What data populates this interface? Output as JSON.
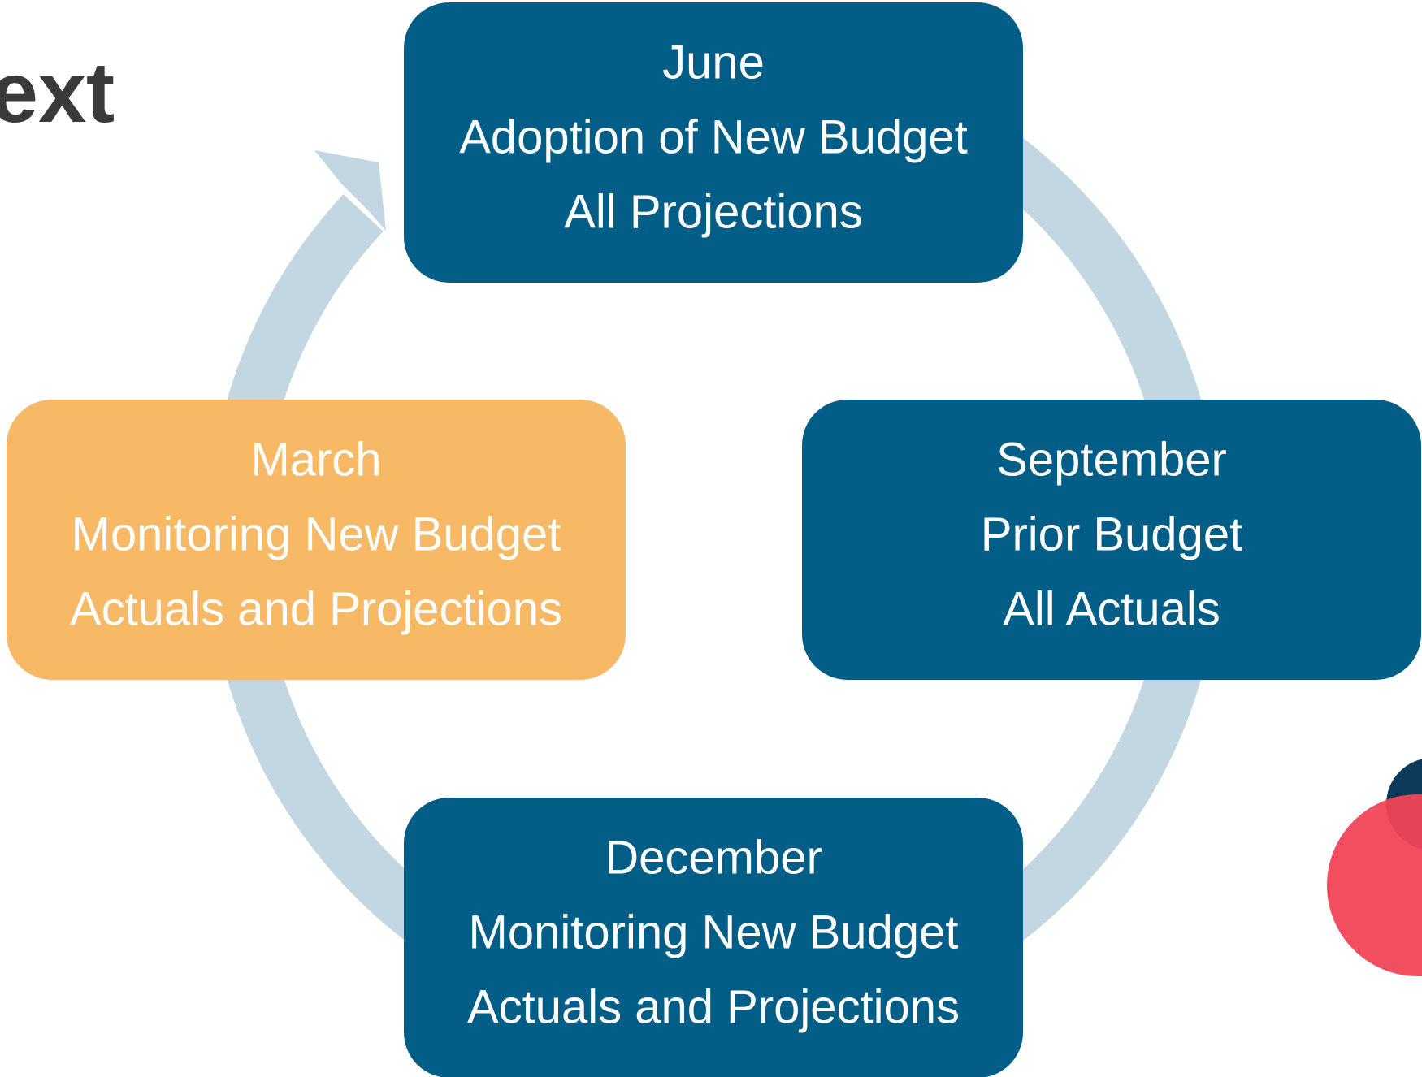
{
  "header": {
    "title": "ext"
  },
  "nodes": [
    {
      "lines": [
        "June",
        "Adoption of New Budget",
        "All Projections"
      ]
    },
    {
      "lines": [
        "September",
        "Prior Budget",
        "All Actuals"
      ]
    },
    {
      "lines": [
        "December",
        "Monitoring New Budget",
        "Actuals and Projections"
      ]
    },
    {
      "lines": [
        "March",
        "Monitoring New Budget",
        "Actuals and Projections"
      ]
    }
  ]
}
